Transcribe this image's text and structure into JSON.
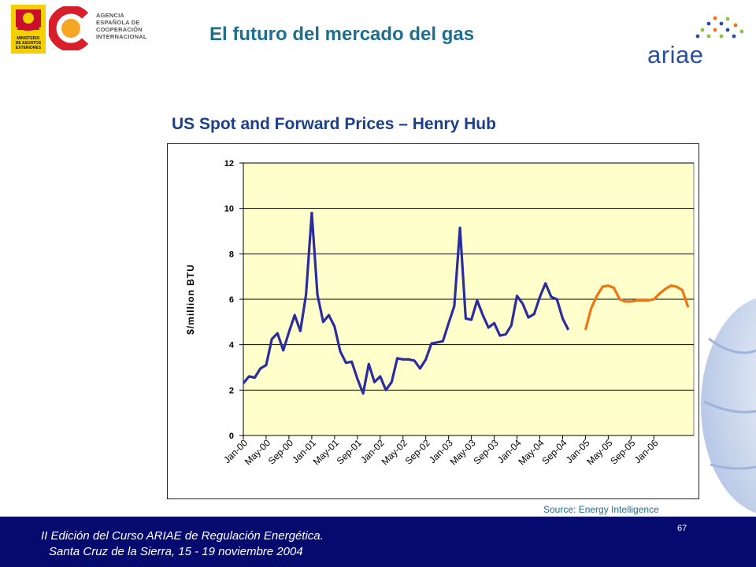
{
  "header": {
    "seal_lines": [
      "MINISTERIO",
      "DE ASUNTOS",
      "EXTERIORES"
    ],
    "agency_lines": [
      "AGENCIA",
      "ESPAÑOLA DE",
      "COOPERACIÓN",
      "INTERNACIONAL"
    ],
    "slide_title": "El futuro del mercado del gas",
    "brand": "ariae"
  },
  "colors": {
    "title": "#1f6e8e",
    "chart_title": "#1b3f8b",
    "plot_background": "#ffffcc",
    "spot_series": "#2b2d9e",
    "forward_series": "#f07314",
    "footer_background": "#040a6e"
  },
  "chart_data": {
    "type": "line",
    "title": "US Spot and Forward Prices – Henry Hub",
    "xlabel": "",
    "ylabel": "$/million BTU",
    "ylim": [
      0,
      12
    ],
    "yticks": [
      0,
      2,
      4,
      6,
      8,
      10,
      12
    ],
    "grid": true,
    "x_start_label": "Jan-00",
    "x_tick_labels": [
      "Jan-00",
      "May-00",
      "Sep-00",
      "Jan-01",
      "May-01",
      "Sep-01",
      "Jan-02",
      "May-02",
      "Sep-02",
      "Jan-03",
      "May-03",
      "Sep-03",
      "Jan-04",
      "May-04",
      "Sep-04",
      "Jan-05",
      "May-05",
      "Sep-05",
      "Jan-06"
    ],
    "series": [
      {
        "name": "",
        "color": "#2b2d9e",
        "values": [
          2.3,
          2.6,
          2.55,
          2.95,
          3.1,
          4.25,
          4.5,
          3.75,
          4.55,
          5.3,
          4.6,
          6.2,
          9.8,
          6.2,
          5.0,
          5.3,
          4.8,
          3.7,
          3.2,
          3.25,
          2.5,
          1.85,
          3.15,
          2.35,
          2.6,
          2.0,
          2.35,
          3.4,
          3.35,
          3.35,
          3.3,
          2.95,
          3.35,
          4.05,
          4.1,
          4.15,
          4.95,
          5.7,
          9.15,
          5.15,
          5.1,
          5.95,
          5.3,
          4.75,
          4.95,
          4.4,
          4.45,
          4.85,
          6.15,
          5.8,
          5.2,
          5.35,
          6.1,
          6.7,
          6.1,
          6.0,
          5.15,
          4.65
        ]
      },
      {
        "name": "",
        "color": "#f07314",
        "start_label": "Jan-05",
        "values": [
          4.65,
          5.6,
          6.15,
          6.55,
          6.6,
          6.5,
          6.0,
          5.9,
          5.9,
          5.95,
          5.95,
          5.95,
          6.0,
          6.25,
          6.45,
          6.6,
          6.55,
          6.4,
          5.65
        ]
      }
    ]
  },
  "source": "Source: Energy Intelligence",
  "footer": {
    "line1": "II Edición del Curso ARIAE de Regulación Energética.",
    "line2": "Santa Cruz de la Sierra, 15 - 19 noviembre 2004",
    "page_number": "67"
  }
}
